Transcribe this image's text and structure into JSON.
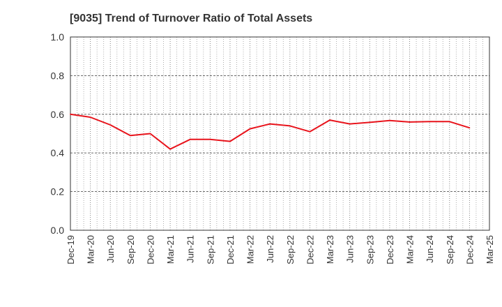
{
  "chart_data": {
    "type": "line",
    "title": "[9035]  Trend of Turnover Ratio of Total Assets",
    "xlabel": "",
    "ylabel": "",
    "ylim": [
      0,
      1.0
    ],
    "yticks": [
      "0.0",
      "0.2",
      "0.4",
      "0.6",
      "0.8",
      "1.0"
    ],
    "grid": true,
    "legend": "none",
    "line_color": "#e8141c",
    "categories": [
      "Dec-19",
      "Mar-20",
      "Jun-20",
      "Sep-20",
      "Dec-20",
      "Mar-21",
      "Jun-21",
      "Sep-21",
      "Dec-21",
      "Mar-22",
      "Jun-22",
      "Sep-22",
      "Dec-22",
      "Mar-23",
      "Jun-23",
      "Sep-23",
      "Dec-23",
      "Mar-24",
      "Jun-24",
      "Sep-24",
      "Dec-24",
      "Mar-25"
    ],
    "series": [
      {
        "values": [
          0.6,
          0.585,
          0.545,
          0.49,
          0.5,
          0.42,
          0.47,
          0.47,
          0.46,
          0.525,
          0.55,
          0.54,
          0.51,
          0.57,
          0.55,
          0.558,
          0.568,
          0.56,
          0.562,
          0.562,
          0.53,
          null
        ]
      }
    ]
  }
}
